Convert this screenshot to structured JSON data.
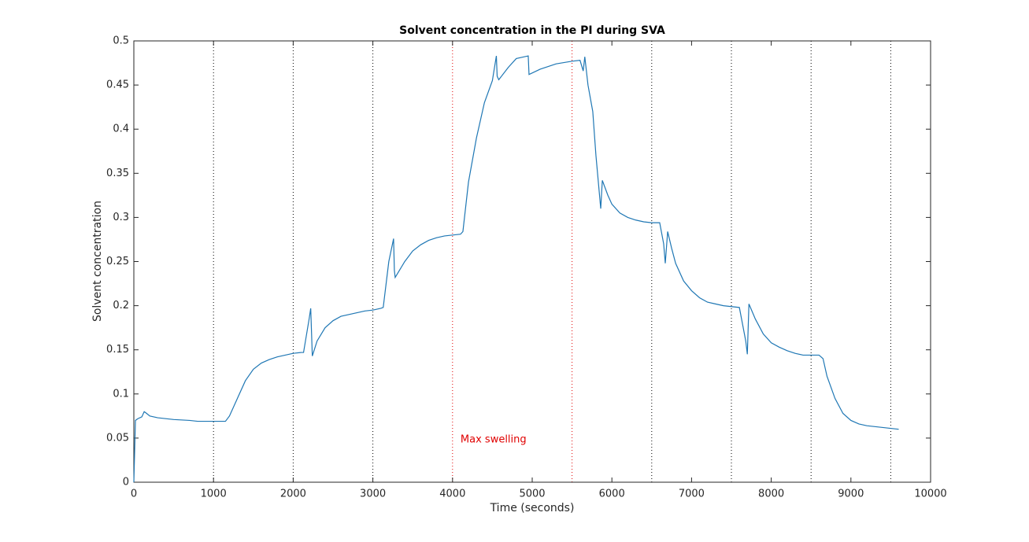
{
  "chart_data": {
    "type": "line",
    "title": "Solvent concentration in the PI during SVA",
    "xlabel": "Time (seconds)",
    "ylabel": "Solvent concentration",
    "xlim": [
      0,
      10000
    ],
    "ylim": [
      0,
      0.5
    ],
    "xticks": [
      0,
      1000,
      2000,
      3000,
      4000,
      5000,
      6000,
      7000,
      8000,
      9000,
      10000
    ],
    "yticks": [
      0,
      0.05,
      0.1,
      0.15,
      0.2,
      0.25,
      0.3,
      0.35,
      0.4,
      0.45,
      0.5
    ],
    "vlines": [
      {
        "x": 1000,
        "color": "#000000"
      },
      {
        "x": 2000,
        "color": "#000000"
      },
      {
        "x": 3000,
        "color": "#000000"
      },
      {
        "x": 4000,
        "color": "#e00000"
      },
      {
        "x": 5500,
        "color": "#e00000"
      },
      {
        "x": 6500,
        "color": "#000000"
      },
      {
        "x": 7500,
        "color": "#000000"
      },
      {
        "x": 8500,
        "color": "#000000"
      },
      {
        "x": 9500,
        "color": "#000000"
      }
    ],
    "annotations": [
      {
        "text": "Max swelling",
        "x": 4100,
        "y": 0.048,
        "color": "#e00000"
      }
    ],
    "series": [
      {
        "color": "#1f77b4",
        "x": [
          0,
          20,
          50,
          100,
          130,
          160,
          200,
          300,
          400,
          500,
          700,
          800,
          1000,
          1150,
          1200,
          1300,
          1400,
          1500,
          1600,
          1700,
          1800,
          1900,
          2000,
          2100,
          2130,
          2200,
          2220,
          2230,
          2240,
          2300,
          2400,
          2500,
          2600,
          2700,
          2800,
          2900,
          3000,
          3100,
          3130,
          3200,
          3260,
          3270,
          3280,
          3400,
          3500,
          3600,
          3700,
          3800,
          3900,
          4000,
          4100,
          4130,
          4200,
          4300,
          4400,
          4500,
          4550,
          4560,
          4580,
          4700,
          4800,
          4950,
          4960,
          5100,
          5300,
          5500,
          5600,
          5640,
          5660,
          5700,
          5760,
          5800,
          5860,
          5880,
          5950,
          6000,
          6100,
          6200,
          6300,
          6400,
          6500,
          6600,
          6650,
          6670,
          6700,
          6750,
          6800,
          6900,
          7000,
          7100,
          7200,
          7300,
          7400,
          7500,
          7600,
          7680,
          7700,
          7720,
          7800,
          7900,
          8000,
          8100,
          8200,
          8300,
          8400,
          8500,
          8600,
          8650,
          8700,
          8800,
          8900,
          9000,
          9100,
          9200,
          9300,
          9400,
          9500,
          9600
        ],
        "values": [
          0,
          0.07,
          0.072,
          0.074,
          0.08,
          0.078,
          0.075,
          0.073,
          0.072,
          0.071,
          0.07,
          0.069,
          0.069,
          0.069,
          0.075,
          0.095,
          0.115,
          0.128,
          0.135,
          0.139,
          0.142,
          0.144,
          0.146,
          0.147,
          0.147,
          0.185,
          0.197,
          0.17,
          0.143,
          0.16,
          0.175,
          0.183,
          0.188,
          0.19,
          0.192,
          0.194,
          0.195,
          0.197,
          0.198,
          0.25,
          0.276,
          0.24,
          0.232,
          0.25,
          0.262,
          0.269,
          0.274,
          0.277,
          0.279,
          0.28,
          0.281,
          0.284,
          0.34,
          0.39,
          0.43,
          0.455,
          0.483,
          0.46,
          0.456,
          0.47,
          0.48,
          0.483,
          0.462,
          0.468,
          0.474,
          0.477,
          0.478,
          0.466,
          0.482,
          0.45,
          0.42,
          0.37,
          0.31,
          0.342,
          0.325,
          0.315,
          0.305,
          0.3,
          0.297,
          0.295,
          0.294,
          0.294,
          0.27,
          0.248,
          0.284,
          0.265,
          0.248,
          0.228,
          0.217,
          0.209,
          0.204,
          0.202,
          0.2,
          0.199,
          0.198,
          0.16,
          0.145,
          0.202,
          0.185,
          0.168,
          0.158,
          0.153,
          0.149,
          0.146,
          0.144,
          0.144,
          0.144,
          0.14,
          0.12,
          0.095,
          0.078,
          0.07,
          0.066,
          0.064,
          0.063,
          0.062,
          0.061,
          0.06
        ]
      }
    ]
  }
}
